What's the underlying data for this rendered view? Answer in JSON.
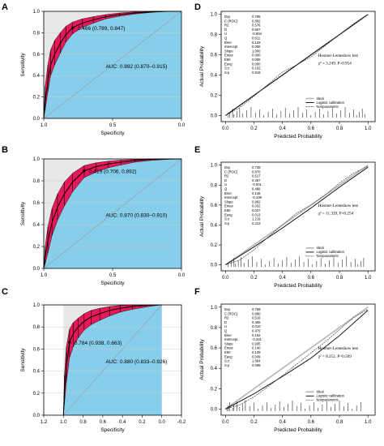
{
  "figure": {
    "panels": [
      {
        "letter": "A"
      },
      {
        "letter": "B"
      },
      {
        "letter": "C"
      },
      {
        "letter": "D"
      },
      {
        "letter": "E"
      },
      {
        "letter": "F"
      }
    ]
  },
  "colors": {
    "roc_fill_below": "#87ceeb",
    "roc_fill_above": "#e8e8e8",
    "ci_band": "#e8195a",
    "curve": "#000000",
    "grid": "#cccccc",
    "diagonal": "#999999"
  },
  "chart_data": [
    {
      "panel": "A",
      "type": "line",
      "xlabel": "Specificity",
      "ylabel": "Sensitivity",
      "x_reversed": true,
      "xlim": [
        1.0,
        0.0
      ],
      "ylim": [
        0.0,
        1.0
      ],
      "x_ticks": [
        "1.0",
        "0.5",
        "0.0"
      ],
      "y_ticks": [
        "0.0",
        "0.2",
        "0.4",
        "0.6",
        "0.8",
        "1.0"
      ],
      "grid": true,
      "threshold_point": {
        "specificity": 0.789,
        "sensitivity": 0.847,
        "label": "0.466 (0.789, 0.847)"
      },
      "auc_label": "AUC: 0.892 (0.870–0.915)",
      "auc": 0.892,
      "roc": {
        "specificity": [
          1.0,
          0.99,
          0.97,
          0.95,
          0.92,
          0.88,
          0.84,
          0.79,
          0.72,
          0.64,
          0.55,
          0.45,
          0.34,
          0.22,
          0.1,
          0.0
        ],
        "sensitivity": [
          0.0,
          0.15,
          0.35,
          0.5,
          0.6,
          0.7,
          0.78,
          0.847,
          0.89,
          0.92,
          0.95,
          0.97,
          0.985,
          0.995,
          1.0,
          1.0
        ],
        "ci_lower": [
          0.0,
          0.08,
          0.25,
          0.4,
          0.5,
          0.61,
          0.71,
          0.79,
          0.85,
          0.89,
          0.93,
          0.955,
          0.975,
          0.99,
          1.0,
          1.0
        ],
        "ci_upper": [
          0.0,
          0.3,
          0.5,
          0.64,
          0.73,
          0.8,
          0.86,
          0.9,
          0.93,
          0.95,
          0.97,
          0.985,
          0.995,
          1.0,
          1.0,
          1.0
        ]
      }
    },
    {
      "panel": "B",
      "type": "line",
      "xlabel": "Specificity",
      "ylabel": "Sensitivity",
      "x_reversed": true,
      "xlim": [
        1.0,
        0.0
      ],
      "ylim": [
        0.0,
        1.0
      ],
      "x_ticks": [
        "1.0",
        "0.5",
        "0.0"
      ],
      "y_ticks": [
        "0.0",
        "0.2",
        "0.4",
        "0.6",
        "0.8",
        "1.0"
      ],
      "grid": true,
      "threshold_point": {
        "specificity": 0.706,
        "sensitivity": 0.892,
        "label": "0.419 (0.706, 0.892)"
      },
      "auc_label": "AUC: 0.870 (0.830–0.910)",
      "auc": 0.87,
      "roc": {
        "specificity": [
          1.0,
          0.99,
          0.97,
          0.94,
          0.9,
          0.85,
          0.79,
          0.706,
          0.62,
          0.53,
          0.44,
          0.34,
          0.23,
          0.12,
          0.0
        ],
        "sensitivity": [
          0.0,
          0.1,
          0.25,
          0.42,
          0.56,
          0.68,
          0.79,
          0.892,
          0.93,
          0.955,
          0.97,
          0.985,
          0.995,
          1.0,
          1.0
        ],
        "ci_lower": [
          0.0,
          0.04,
          0.14,
          0.3,
          0.44,
          0.57,
          0.7,
          0.83,
          0.88,
          0.92,
          0.945,
          0.97,
          0.985,
          0.995,
          1.0
        ],
        "ci_upper": [
          0.0,
          0.2,
          0.38,
          0.55,
          0.68,
          0.79,
          0.87,
          0.94,
          0.965,
          0.98,
          0.99,
          0.995,
          1.0,
          1.0,
          1.0
        ]
      }
    },
    {
      "panel": "C",
      "type": "line",
      "xlabel": "Specificity",
      "ylabel": "Sensitivity",
      "x_reversed": true,
      "xlim": [
        1.2,
        -0.2
      ],
      "ylim": [
        0.0,
        1.0
      ],
      "x_ticks": [
        "1.2",
        "1.0",
        "0.8",
        "0.6",
        "0.4",
        "0.2",
        "0.0",
        "-0.2"
      ],
      "y_ticks": [
        "0.0",
        "0.2",
        "0.4",
        "0.6",
        "0.8",
        "1.0"
      ],
      "grid": true,
      "threshold_point": {
        "specificity": 0.938,
        "sensitivity": 0.663,
        "label": "0.784 (0.938, 0.663)"
      },
      "auc_label": "AUC: 0.880 (0.833–0.926)",
      "auc": 0.88,
      "roc": {
        "specificity": [
          1.0,
          0.99,
          0.97,
          0.938,
          0.9,
          0.85,
          0.79,
          0.72,
          0.63,
          0.53,
          0.42,
          0.3,
          0.17,
          0.05,
          0.0
        ],
        "sensitivity": [
          0.0,
          0.2,
          0.45,
          0.663,
          0.74,
          0.8,
          0.85,
          0.89,
          0.92,
          0.95,
          0.97,
          0.985,
          0.995,
          1.0,
          1.0
        ],
        "ci_lower": [
          0.0,
          0.1,
          0.3,
          0.52,
          0.62,
          0.7,
          0.77,
          0.82,
          0.86,
          0.9,
          0.935,
          0.96,
          0.98,
          0.995,
          1.0
        ],
        "ci_upper": [
          0.0,
          0.36,
          0.62,
          0.78,
          0.84,
          0.88,
          0.92,
          0.95,
          0.97,
          0.985,
          0.995,
          1.0,
          1.0,
          1.0,
          1.0
        ]
      }
    },
    {
      "panel": "D",
      "type": "line",
      "xlabel": "Predicted Probability",
      "ylabel": "Actual Probability",
      "xlim": [
        0.0,
        1.0
      ],
      "ylim": [
        0.0,
        1.0
      ],
      "x_ticks": [
        "0.0",
        "0.2",
        "0.4",
        "0.6",
        "0.8",
        "1.0"
      ],
      "y_ticks": [
        "0.0",
        "0.2",
        "0.4",
        "0.6",
        "0.8",
        "1.0"
      ],
      "grid": false,
      "stats": [
        {
          "label": "Dxy",
          "value": "0.785"
        },
        {
          "label": "C (ROC)",
          "value": "0.892"
        },
        {
          "label": "R2",
          "value": "0.576"
        },
        {
          "label": "D",
          "value": "0.607"
        },
        {
          "label": "U",
          "value": "-0.004"
        },
        {
          "label": "Q",
          "value": "0.611"
        },
        {
          "label": "Brier",
          "value": "0.133"
        },
        {
          "label": "Intercept",
          "value": "0.000"
        },
        {
          "label": "Slope",
          "value": "1.000"
        },
        {
          "label": "Emax",
          "value": "0.000"
        },
        {
          "label": "E90",
          "value": "0.000"
        },
        {
          "label": "Eavg",
          "value": "0.000"
        },
        {
          "label": "S:z",
          "value": "0.102"
        },
        {
          "label": "S:p",
          "value": "0.919"
        }
      ],
      "hl_title": "Hosmer-Lemeshow test",
      "hl_stat": "χ² = 3.249, P=0.954",
      "legend": [
        "Ideal",
        "Logistic calibration",
        "Nonparametric"
      ],
      "legend_position": "bottom-right",
      "series": [
        {
          "name": "Ideal",
          "x": [
            0.0,
            1.0
          ],
          "y": [
            0.0,
            1.0
          ]
        },
        {
          "name": "Logistic calibration",
          "x": [
            0.0,
            0.2,
            0.4,
            0.6,
            0.8,
            1.0
          ],
          "y": [
            0.0,
            0.2,
            0.4,
            0.6,
            0.8,
            1.0
          ]
        },
        {
          "name": "Nonparametric",
          "x": [
            0.0,
            0.1,
            0.2,
            0.3,
            0.4,
            0.5,
            0.6,
            0.7,
            0.8,
            0.9,
            1.0
          ],
          "y": [
            0.0,
            0.08,
            0.19,
            0.31,
            0.43,
            0.5,
            0.58,
            0.69,
            0.8,
            0.91,
            1.0
          ]
        }
      ],
      "rug": [
        0.02,
        0.03,
        0.05,
        0.06,
        0.08,
        0.1,
        0.12,
        0.15,
        0.18,
        0.21,
        0.24,
        0.27,
        0.3,
        0.33,
        0.36,
        0.39,
        0.42,
        0.45,
        0.48,
        0.51,
        0.54,
        0.57,
        0.6,
        0.63,
        0.66,
        0.69,
        0.72,
        0.75,
        0.78,
        0.81,
        0.84,
        0.87,
        0.9,
        0.92,
        0.94,
        0.96,
        0.98
      ]
    },
    {
      "panel": "E",
      "type": "line",
      "xlabel": "Predicted Probability",
      "ylabel": "Actual Probability",
      "xlim": [
        0.0,
        1.0
      ],
      "ylim": [
        0.0,
        1.0
      ],
      "x_ticks": [
        "0.0",
        "0.2",
        "0.4",
        "0.6",
        "0.8",
        "1.0"
      ],
      "y_ticks": [
        "0.0",
        "0.2",
        "0.4",
        "0.6",
        "0.8",
        "1.0"
      ],
      "grid": false,
      "stats": [
        {
          "label": "Dxy",
          "value": "0.739"
        },
        {
          "label": "C (ROC)",
          "value": "0.870"
        },
        {
          "label": "R2",
          "value": "0.517"
        },
        {
          "label": "D",
          "value": "0.467"
        },
        {
          "label": "U",
          "value": "-0.001"
        },
        {
          "label": "Q",
          "value": "0.468"
        },
        {
          "label": "Brier",
          "value": "0.146"
        },
        {
          "label": "Intercept",
          "value": "-0.109"
        },
        {
          "label": "Slope",
          "value": "0.962"
        },
        {
          "label": "Emax",
          "value": "0.032"
        },
        {
          "label": "E90",
          "value": "0.027"
        },
        {
          "label": "Eavg",
          "value": "0.013"
        },
        {
          "label": "S:z",
          "value": "1.219"
        },
        {
          "label": "S:p",
          "value": "0.223"
        }
      ],
      "hl_title": "Hosmer-Lemeshow test",
      "hl_stat": "χ² = 11.320, P=0.254",
      "legend": [
        "Ideal",
        "Logistic calibration",
        "Nonparametric"
      ],
      "legend_position": "bottom-right",
      "series": [
        {
          "name": "Ideal",
          "x": [
            0.0,
            1.0
          ],
          "y": [
            0.0,
            1.0
          ]
        },
        {
          "name": "Logistic calibration",
          "x": [
            0.0,
            0.2,
            0.4,
            0.6,
            0.8,
            1.0
          ],
          "y": [
            0.0,
            0.18,
            0.37,
            0.57,
            0.78,
            0.98
          ]
        },
        {
          "name": "Nonparametric",
          "x": [
            0.0,
            0.1,
            0.2,
            0.3,
            0.4,
            0.5,
            0.6,
            0.7,
            0.8,
            0.9,
            1.0
          ],
          "y": [
            0.0,
            0.05,
            0.15,
            0.28,
            0.4,
            0.52,
            0.6,
            0.7,
            0.82,
            0.92,
            0.99
          ]
        }
      ],
      "rug": [
        0.02,
        0.04,
        0.06,
        0.07,
        0.09,
        0.11,
        0.13,
        0.16,
        0.19,
        0.22,
        0.25,
        0.28,
        0.31,
        0.34,
        0.37,
        0.4,
        0.43,
        0.46,
        0.49,
        0.52,
        0.55,
        0.58,
        0.61,
        0.64,
        0.67,
        0.7,
        0.73,
        0.76,
        0.79,
        0.82,
        0.85,
        0.88,
        0.91,
        0.93,
        0.95,
        0.97
      ]
    },
    {
      "panel": "F",
      "type": "line",
      "xlabel": "Predicted Probability",
      "ylabel": "Actual Probability",
      "xlim": [
        0.0,
        1.0
      ],
      "ylim": [
        0.0,
        1.0
      ],
      "x_ticks": [
        "0.0",
        "0.2",
        "0.4",
        "0.6",
        "0.8",
        "1.0"
      ],
      "y_ticks": [
        "0.0",
        "0.2",
        "0.4",
        "0.6",
        "0.8",
        "1.0"
      ],
      "grid": false,
      "stats": [
        {
          "label": "Dxy",
          "value": "0.759"
        },
        {
          "label": "C (ROC)",
          "value": "0.880"
        },
        {
          "label": "R2",
          "value": "0.516"
        },
        {
          "label": "D",
          "value": "0.465"
        },
        {
          "label": "U",
          "value": "0.010"
        },
        {
          "label": "Q",
          "value": "0.475"
        },
        {
          "label": "Brier",
          "value": "0.152"
        },
        {
          "label": "Intercept",
          "value": "-0.331"
        },
        {
          "label": "Slope",
          "value": "0.935"
        },
        {
          "label": "Emax",
          "value": "0.140"
        },
        {
          "label": "E90",
          "value": "0.129"
        },
        {
          "label": "Eavg",
          "value": "0.049"
        },
        {
          "label": "S:z",
          "value": "1.664"
        },
        {
          "label": "S:p",
          "value": "0.096"
        }
      ],
      "hl_title": "Hosmer-Lemeshow test",
      "hl_stat": "χ² = 8.252, P=0.509",
      "legend": [
        "Ideal",
        "Logistic calibration",
        "Nonparametric"
      ],
      "legend_position": "bottom-right",
      "series": [
        {
          "name": "Ideal",
          "x": [
            0.0,
            1.0
          ],
          "y": [
            0.0,
            1.0
          ]
        },
        {
          "name": "Logistic calibration",
          "x": [
            0.0,
            0.2,
            0.4,
            0.6,
            0.8,
            1.0
          ],
          "y": [
            0.0,
            0.15,
            0.32,
            0.5,
            0.72,
            0.97
          ]
        },
        {
          "name": "Nonparametric",
          "x": [
            0.0,
            0.1,
            0.2,
            0.3,
            0.4,
            0.5,
            0.6,
            0.7,
            0.8,
            0.9,
            1.0
          ],
          "y": [
            0.0,
            0.04,
            0.12,
            0.22,
            0.33,
            0.44,
            0.55,
            0.66,
            0.78,
            0.9,
            0.98
          ]
        }
      ],
      "rug": [
        0.01,
        0.02,
        0.03,
        0.05,
        0.06,
        0.08,
        0.1,
        0.12,
        0.14,
        0.17,
        0.2,
        0.23,
        0.26,
        0.29,
        0.32,
        0.35,
        0.38,
        0.41,
        0.44,
        0.47,
        0.5,
        0.53,
        0.56,
        0.59,
        0.62,
        0.65,
        0.68,
        0.71,
        0.74,
        0.77,
        0.8,
        0.83,
        0.86,
        0.89,
        0.92,
        0.95
      ]
    }
  ]
}
